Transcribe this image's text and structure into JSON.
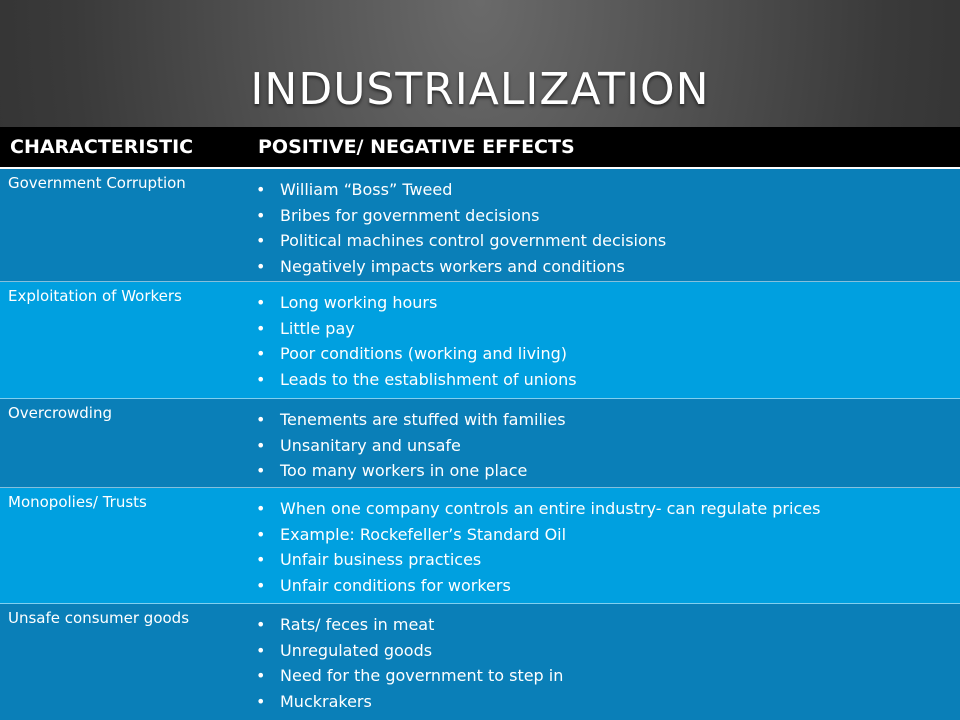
{
  "title": "INDUSTRIALIZATION",
  "table": {
    "headers": [
      "CHARACTERISTIC",
      "POSITIVE/ NEGATIVE EFFECTS"
    ],
    "rows": [
      {
        "characteristic": "Government Corruption",
        "effects": [
          "William “Boss” Tweed",
          "Bribes for government decisions",
          "Political machines control government decisions",
          "Negatively impacts workers and conditions"
        ]
      },
      {
        "characteristic": "Exploitation of Workers",
        "effects": [
          "Long working hours",
          "Little pay",
          "Poor conditions (working and living)",
          "Leads to the establishment of unions"
        ]
      },
      {
        "characteristic": "Overcrowding",
        "effects": [
          "Tenements are stuffed with families",
          "Unsanitary and unsafe",
          "Too many workers in one place"
        ]
      },
      {
        "characteristic": "Monopolies/ Trusts",
        "effects": [
          "When one company controls an entire industry- can regulate prices",
          "Example: Rockefeller’s Standard Oil",
          "Unfair business practices",
          "Unfair conditions for workers"
        ]
      },
      {
        "characteristic": "Unsafe consumer goods",
        "effects": [
          "Rats/ feces in meat",
          "Unregulated goods",
          "Need for the government to step in",
          "Muckrakers"
        ]
      }
    ]
  },
  "colors": {
    "header_bg": "#000000",
    "row_dark": "#0a7fb8",
    "row_light": "#00a0e0",
    "text": "#ffffff"
  }
}
